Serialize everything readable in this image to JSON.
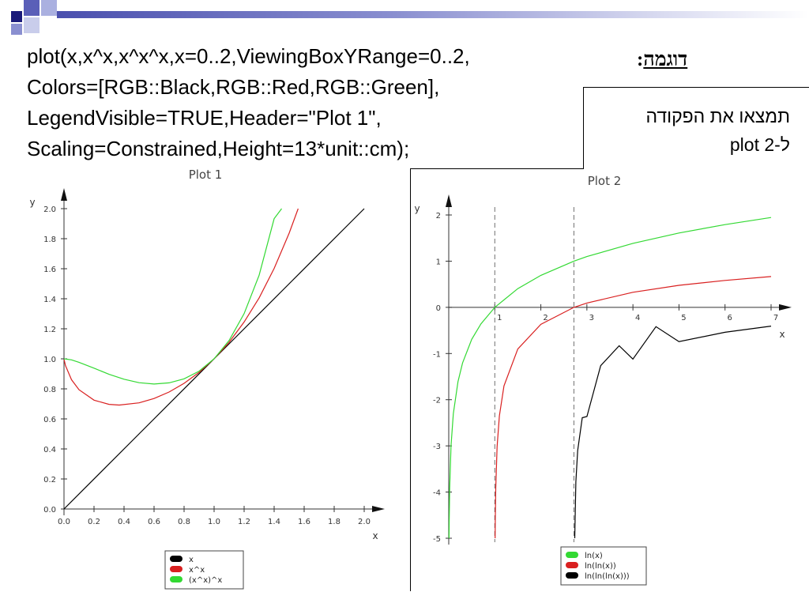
{
  "code_lines": [
    "plot(x,x^x,x^x^x,x=0..2,ViewingBoxYRange=0..2,",
    "Colors=[RGB::Black,RGB::Red,RGB::Green],",
    "LegendVisible=TRUE,Header=\"Plot 1\",",
    "Scaling=Constrained,Height=13*unit::cm);"
  ],
  "example_label": "דוגמה",
  "example_colon": ":",
  "task_lines": [
    "תמצאו את הפקודה",
    "ל-plot 2"
  ],
  "colors": {
    "deco_dark": "#1a1a7a",
    "deco_mid": "#5a5fb8",
    "deco_light": "#aab0e0",
    "black": "#000000",
    "red": "#d92020",
    "green": "#33d933",
    "asymptote": "#707070"
  },
  "chart_data": [
    {
      "type": "line",
      "title": "Plot 1",
      "xlabel": "x",
      "ylabel": "y",
      "xlim": [
        0,
        2
      ],
      "ylim": [
        0,
        2
      ],
      "x_ticks": [
        0.0,
        0.2,
        0.4,
        0.6,
        0.8,
        1.0,
        1.2,
        1.4,
        1.6,
        1.8,
        2.0
      ],
      "y_ticks": [
        0.0,
        0.2,
        0.4,
        0.6,
        0.8,
        1.0,
        1.2,
        1.4,
        1.6,
        1.8,
        2.0
      ],
      "grid": false,
      "legend_position": "bottom-center",
      "series": [
        {
          "name": "x",
          "color": "#000000",
          "x": [
            0,
            0.5,
            1.0,
            1.5,
            2.0
          ],
          "y": [
            0,
            0.5,
            1.0,
            1.5,
            2.0
          ]
        },
        {
          "name": "x^x",
          "color": "#d92020",
          "x": [
            0.001,
            0.01,
            0.05,
            0.1,
            0.2,
            0.3,
            0.368,
            0.5,
            0.6,
            0.7,
            0.8,
            0.9,
            1.0,
            1.1,
            1.2,
            1.3,
            1.4,
            1.5,
            1.56
          ],
          "y": [
            0.993,
            0.955,
            0.861,
            0.794,
            0.725,
            0.697,
            0.692,
            0.707,
            0.736,
            0.779,
            0.837,
            0.91,
            1.0,
            1.11,
            1.245,
            1.406,
            1.602,
            1.837,
            2.0
          ]
        },
        {
          "name": "(x^x)^x",
          "color": "#33d933",
          "x": [
            0.001,
            0.05,
            0.1,
            0.2,
            0.3,
            0.4,
            0.5,
            0.6,
            0.7,
            0.8,
            0.9,
            1.0,
            1.1,
            1.2,
            1.3,
            1.4,
            1.45
          ],
          "y": [
            1.0,
            0.993,
            0.977,
            0.938,
            0.897,
            0.864,
            0.841,
            0.832,
            0.84,
            0.867,
            0.918,
            1.0,
            1.122,
            1.301,
            1.557,
            1.933,
            2.0
          ]
        }
      ]
    },
    {
      "type": "line",
      "title": "Plot 2",
      "xlabel": "x",
      "ylabel": "y",
      "xlim": [
        0,
        7
      ],
      "ylim": [
        -5,
        2
      ],
      "x_ticks": [
        1,
        2,
        3,
        4,
        5,
        6,
        7
      ],
      "y_ticks": [
        -5,
        -4,
        -3,
        -2,
        -1,
        0,
        1,
        2
      ],
      "vertical_asymptotes": [
        1,
        2.718
      ],
      "grid": false,
      "legend_position": "bottom-right",
      "series": [
        {
          "name": "ln(x)",
          "color": "#33d933",
          "x": [
            0.0067,
            0.01,
            0.02,
            0.05,
            0.1,
            0.2,
            0.3,
            0.5,
            0.7,
            1.0,
            1.5,
            2.0,
            2.718,
            3.0,
            4.0,
            5.0,
            6.0,
            7.0
          ],
          "y": [
            -5.0,
            -4.605,
            -3.912,
            -2.996,
            -2.303,
            -1.609,
            -1.204,
            -0.693,
            -0.357,
            0.0,
            0.405,
            0.693,
            1.0,
            1.099,
            1.386,
            1.609,
            1.792,
            1.946
          ]
        },
        {
          "name": "ln(ln(x))",
          "color": "#d92020",
          "x": [
            1.0067,
            1.01,
            1.02,
            1.05,
            1.1,
            1.2,
            1.5,
            2.0,
            2.718,
            3.0,
            4.0,
            5.0,
            6.0,
            7.0
          ],
          "y": [
            -5.0,
            -4.61,
            -3.917,
            -3.02,
            -2.35,
            -1.702,
            -0.903,
            -0.367,
            0.0,
            0.094,
            0.327,
            0.476,
            0.583,
            0.666
          ]
        },
        {
          "name": "ln(ln(ln(x)))",
          "color": "#000000",
          "x": [
            2.7366,
            2.74,
            2.76,
            2.8,
            2.9,
            3.0,
            3.3,
            3.7,
            4.0,
            4.5,
            5.0,
            6.0,
            7.0
          ],
          "y": [
            -5.0,
            -4.81,
            -3.78,
            -3.1,
            -2.39,
            -2.364,
            -1.263,
            -0.832,
            -1.12,
            -0.418,
            -0.741,
            -0.54,
            -0.406
          ]
        }
      ]
    }
  ]
}
